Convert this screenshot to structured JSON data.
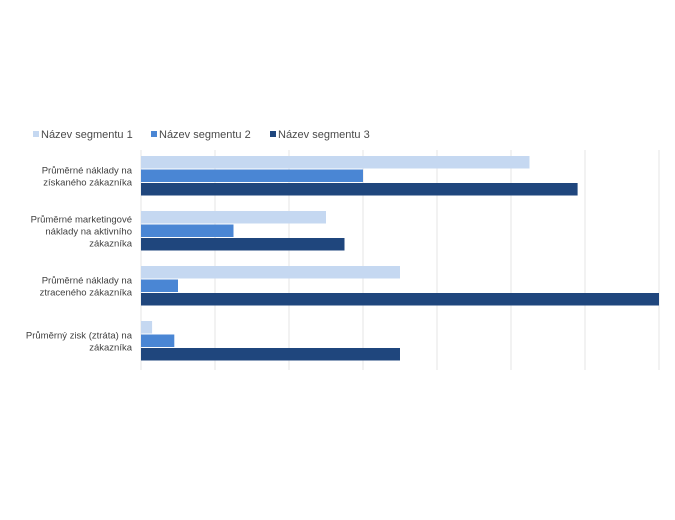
{
  "chart_data": {
    "type": "bar",
    "orientation": "horizontal",
    "categories": [
      [
        "Průměrné náklady na",
        "získaného zákazníka"
      ],
      [
        "Průměrné marketingové",
        "náklady na aktivního",
        "zákazníka"
      ],
      [
        "Průměrné náklady na",
        "ztraceného zákazníka"
      ],
      [
        "Průměrný zisk (ztráta) na",
        "zákazníka"
      ]
    ],
    "series": [
      {
        "name": "Název segmentu 1",
        "color": "#c5d8f1",
        "values": [
          5.25,
          2.5,
          3.5,
          0.15
        ]
      },
      {
        "name": "Název segmentu 2",
        "color": "#4a86d4",
        "values": [
          3.0,
          1.25,
          0.5,
          0.45
        ]
      },
      {
        "name": "Název segmentu 3",
        "color": "#1f467d",
        "values": [
          5.9,
          2.75,
          7.0,
          3.5
        ]
      }
    ],
    "xlim": [
      0,
      7
    ],
    "grid": true,
    "legend_position": "top-left"
  }
}
